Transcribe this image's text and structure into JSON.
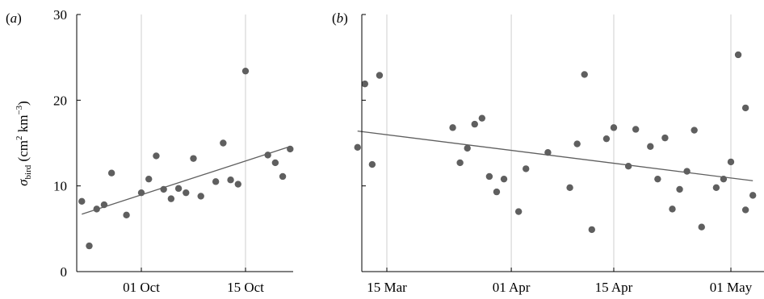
{
  "chart_data": [
    {
      "type": "scatter",
      "panel_label": "a",
      "ylabel": {
        "symbol": "σ",
        "subscript": "bird",
        "units_open": " (cm",
        "units_sq": "2",
        "units_mid": " km",
        "units_exp": "−3",
        "units_close": ")"
      },
      "ylim": [
        0,
        30
      ],
      "yticks": [
        0,
        10,
        20,
        30
      ],
      "xlim": [
        "2015-09-23",
        "2015-10-20"
      ],
      "xticks": [
        {
          "date": "2015-10-01",
          "label": "01 Oct"
        },
        {
          "date": "2015-10-15",
          "label": "15 Oct"
        }
      ],
      "grid": "vertical at x ticks",
      "points": [
        {
          "x": "2015-09-23",
          "y": 8.2
        },
        {
          "x": "2015-09-24",
          "y": 3.0
        },
        {
          "x": "2015-09-25",
          "y": 7.3
        },
        {
          "x": "2015-09-26",
          "y": 7.8
        },
        {
          "x": "2015-09-27",
          "y": 11.5
        },
        {
          "x": "2015-09-29",
          "y": 6.6
        },
        {
          "x": "2015-10-01",
          "y": 9.2
        },
        {
          "x": "2015-10-02",
          "y": 10.8
        },
        {
          "x": "2015-10-03",
          "y": 13.5
        },
        {
          "x": "2015-10-04",
          "y": 9.6
        },
        {
          "x": "2015-10-05",
          "y": 8.5
        },
        {
          "x": "2015-10-06",
          "y": 9.7
        },
        {
          "x": "2015-10-07",
          "y": 9.2
        },
        {
          "x": "2015-10-08",
          "y": 13.2
        },
        {
          "x": "2015-10-09",
          "y": 8.8
        },
        {
          "x": "2015-10-11",
          "y": 10.5
        },
        {
          "x": "2015-10-12",
          "y": 15.0
        },
        {
          "x": "2015-10-13",
          "y": 10.7
        },
        {
          "x": "2015-10-14",
          "y": 10.2
        },
        {
          "x": "2015-10-15",
          "y": 23.4
        },
        {
          "x": "2015-10-18",
          "y": 13.6
        },
        {
          "x": "2015-10-19",
          "y": 12.7
        },
        {
          "x": "2015-10-20",
          "y": 11.1
        },
        {
          "x": "2015-10-21",
          "y": 14.3
        }
      ],
      "trend": [
        {
          "x": "2015-09-23",
          "y": 6.7
        },
        {
          "x": "2015-10-21",
          "y": 14.6
        }
      ]
    },
    {
      "type": "scatter",
      "panel_label": "b",
      "ylim": [
        0,
        30
      ],
      "xlim": [
        "2015-03-11",
        "2015-05-04"
      ],
      "xticks": [
        {
          "date": "2015-03-15",
          "label": "15 Mar"
        },
        {
          "date": "2015-04-01",
          "label": "01 Apr"
        },
        {
          "date": "2015-04-15",
          "label": "15 Apr"
        },
        {
          "date": "2015-05-01",
          "label": "01 May"
        }
      ],
      "grid": "vertical at x ticks",
      "points": [
        {
          "x": "2015-03-11",
          "y": 14.5
        },
        {
          "x": "2015-03-12",
          "y": 21.9
        },
        {
          "x": "2015-03-13",
          "y": 12.5
        },
        {
          "x": "2015-03-14",
          "y": 22.9
        },
        {
          "x": "2015-03-24",
          "y": 16.8
        },
        {
          "x": "2015-03-25",
          "y": 12.7
        },
        {
          "x": "2015-03-26",
          "y": 14.4
        },
        {
          "x": "2015-03-27",
          "y": 17.2
        },
        {
          "x": "2015-03-28",
          "y": 17.9
        },
        {
          "x": "2015-03-29",
          "y": 11.1
        },
        {
          "x": "2015-03-30",
          "y": 9.3
        },
        {
          "x": "2015-03-31",
          "y": 10.8
        },
        {
          "x": "2015-04-02",
          "y": 7.0
        },
        {
          "x": "2015-04-03",
          "y": 12.0
        },
        {
          "x": "2015-04-06",
          "y": 13.9
        },
        {
          "x": "2015-04-09",
          "y": 9.8
        },
        {
          "x": "2015-04-10",
          "y": 14.9
        },
        {
          "x": "2015-04-11",
          "y": 23.0
        },
        {
          "x": "2015-04-12",
          "y": 4.9
        },
        {
          "x": "2015-04-14",
          "y": 15.5
        },
        {
          "x": "2015-04-15",
          "y": 16.8
        },
        {
          "x": "2015-04-17",
          "y": 12.3
        },
        {
          "x": "2015-04-18",
          "y": 16.6
        },
        {
          "x": "2015-04-20",
          "y": 14.6
        },
        {
          "x": "2015-04-21",
          "y": 10.8
        },
        {
          "x": "2015-04-22",
          "y": 15.6
        },
        {
          "x": "2015-04-23",
          "y": 7.3
        },
        {
          "x": "2015-04-24",
          "y": 9.6
        },
        {
          "x": "2015-04-25",
          "y": 11.7
        },
        {
          "x": "2015-04-26",
          "y": 16.5
        },
        {
          "x": "2015-04-27",
          "y": 5.2
        },
        {
          "x": "2015-04-29",
          "y": 9.8
        },
        {
          "x": "2015-04-30",
          "y": 10.8
        },
        {
          "x": "2015-05-01",
          "y": 12.8
        },
        {
          "x": "2015-05-02",
          "y": 25.3
        },
        {
          "x": "2015-05-03",
          "y": 19.1
        },
        {
          "x": "2015-05-03",
          "y": 7.2
        },
        {
          "x": "2015-05-04",
          "y": 8.9
        }
      ],
      "trend": [
        {
          "x": "2015-03-11",
          "y": 16.4
        },
        {
          "x": "2015-05-04",
          "y": 10.6
        }
      ]
    }
  ]
}
